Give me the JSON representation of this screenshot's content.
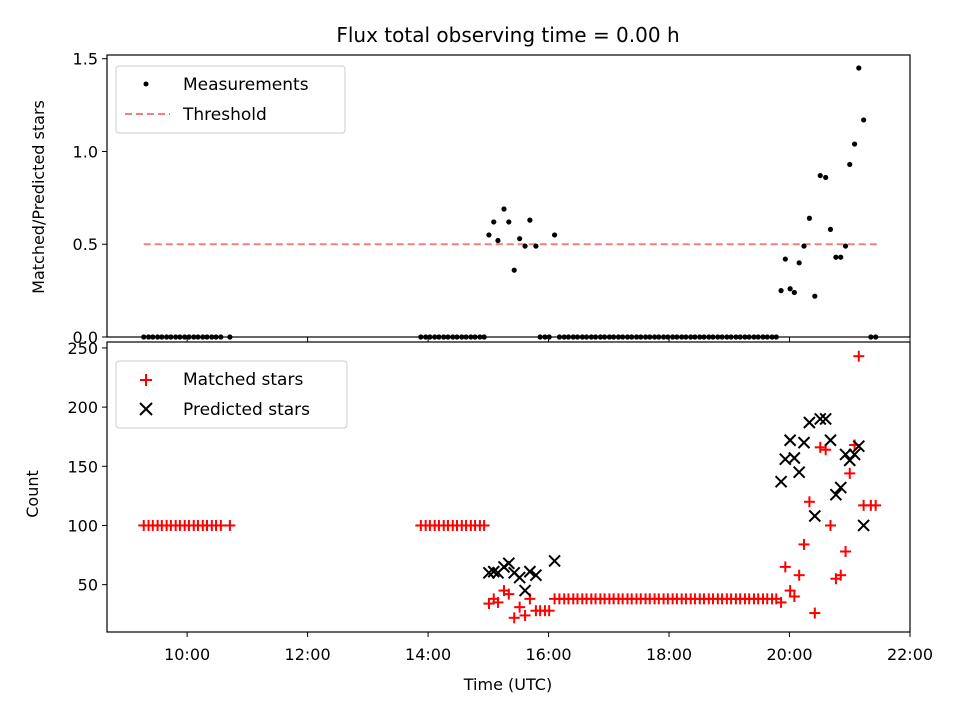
{
  "chart_data": {
    "title": "Flux total observing time = 0.00 h",
    "xlabel": "Time (UTC)",
    "x_unit": "hours UTC",
    "xlim": [
      8.67,
      22.0
    ],
    "xticks": [
      10,
      12,
      14,
      16,
      18,
      20,
      22
    ],
    "xtick_labels": [
      "10:00",
      "12:00",
      "14:00",
      "16:00",
      "18:00",
      "20:00",
      "22:00"
    ],
    "colors": {
      "measurements": "#000000",
      "threshold": "#f08080",
      "matched": "#ff0000",
      "predicted": "#000000"
    },
    "panels": [
      {
        "type": "scatter",
        "ylabel": "Matched/Predicted stars",
        "ylim": [
          0,
          1.52
        ],
        "yticks": [
          0.0,
          0.5,
          1.0,
          1.5
        ],
        "ytick_labels": [
          "0.0",
          "0.5",
          "1.0",
          "1.5"
        ],
        "legend_position": "top-left",
        "threshold": {
          "name": "Threshold",
          "value": 0.5,
          "x_range": [
            9.28,
            21.45
          ]
        },
        "series": [
          {
            "name": "Measurements",
            "marker": "dot",
            "x": [
              9.28,
              9.36,
              9.43,
              9.51,
              9.58,
              9.66,
              9.73,
              9.81,
              9.88,
              9.96,
              10.03,
              10.11,
              10.18,
              10.26,
              10.33,
              10.41,
              10.48,
              10.56,
              10.71,
              13.88,
              13.96,
              14.03,
              14.11,
              14.18,
              14.26,
              14.33,
              14.41,
              14.48,
              14.56,
              14.63,
              14.71,
              14.78,
              14.86,
              14.93,
              15.01,
              15.09,
              15.16,
              15.26,
              15.34,
              15.43,
              15.52,
              15.61,
              15.69,
              15.79,
              15.86,
              15.94,
              16.01,
              16.1,
              16.18,
              16.26,
              16.33,
              16.41,
              16.48,
              16.56,
              16.63,
              16.71,
              16.78,
              16.86,
              16.93,
              17.01,
              17.08,
              17.16,
              17.23,
              17.31,
              17.38,
              17.46,
              17.53,
              17.61,
              17.68,
              17.76,
              17.83,
              17.91,
              17.98,
              18.06,
              18.13,
              18.21,
              18.28,
              18.36,
              18.43,
              18.51,
              18.58,
              18.66,
              18.73,
              18.81,
              18.88,
              18.96,
              19.03,
              19.11,
              19.18,
              19.26,
              19.33,
              19.41,
              19.48,
              19.56,
              19.63,
              19.71,
              19.78,
              19.86,
              19.93,
              20.01,
              20.08,
              20.16,
              20.24,
              20.33,
              20.42,
              20.51,
              20.6,
              20.68,
              20.77,
              20.85,
              20.93,
              21.0,
              21.08,
              21.15,
              21.23,
              21.35,
              21.43
            ],
            "y": [
              0,
              0,
              0,
              0,
              0,
              0,
              0,
              0,
              0,
              0,
              0,
              0,
              0,
              0,
              0,
              0,
              0,
              0,
              0,
              0,
              0,
              0,
              0,
              0,
              0,
              0,
              0,
              0,
              0,
              0,
              0,
              0,
              0,
              0,
              0.55,
              0.62,
              0.52,
              0.69,
              0.62,
              0.36,
              0.53,
              0.49,
              0.63,
              0.49,
              0,
              0,
              0,
              0.55,
              0,
              0,
              0,
              0,
              0,
              0,
              0,
              0,
              0,
              0,
              0,
              0,
              0,
              0,
              0,
              0,
              0,
              0,
              0,
              0,
              0,
              0,
              0,
              0,
              0,
              0,
              0,
              0,
              0,
              0,
              0,
              0,
              0,
              0,
              0,
              0,
              0,
              0,
              0,
              0,
              0,
              0,
              0,
              0,
              0,
              0,
              0,
              0,
              0,
              0.25,
              0.42,
              0.26,
              0.24,
              0.4,
              0.49,
              0.64,
              0.22,
              0.87,
              0.86,
              0.58,
              0.43,
              0.43,
              0.49,
              0.93,
              1.04,
              1.45,
              1.17,
              0,
              0
            ]
          }
        ]
      },
      {
        "type": "scatter",
        "ylabel": "Count",
        "ylim": [
          10,
          255
        ],
        "yticks": [
          50,
          100,
          150,
          200,
          250
        ],
        "ytick_labels": [
          "50",
          "100",
          "150",
          "200",
          "250"
        ],
        "legend_position": "top-left",
        "series": [
          {
            "name": "Matched stars",
            "marker": "plus",
            "x": [
              9.28,
              9.36,
              9.43,
              9.51,
              9.58,
              9.66,
              9.73,
              9.81,
              9.88,
              9.96,
              10.03,
              10.11,
              10.18,
              10.26,
              10.33,
              10.41,
              10.48,
              10.56,
              10.71,
              13.88,
              13.96,
              14.03,
              14.11,
              14.18,
              14.26,
              14.33,
              14.41,
              14.48,
              14.56,
              14.63,
              14.71,
              14.78,
              14.86,
              14.93,
              15.01,
              15.09,
              15.16,
              15.26,
              15.34,
              15.43,
              15.52,
              15.61,
              15.69,
              15.79,
              15.86,
              15.94,
              16.01,
              16.1,
              16.18,
              16.26,
              16.33,
              16.41,
              16.48,
              16.56,
              16.63,
              16.71,
              16.78,
              16.86,
              16.93,
              17.01,
              17.08,
              17.16,
              17.23,
              17.31,
              17.38,
              17.46,
              17.53,
              17.61,
              17.68,
              17.76,
              17.83,
              17.91,
              17.98,
              18.06,
              18.13,
              18.21,
              18.28,
              18.36,
              18.43,
              18.51,
              18.58,
              18.66,
              18.73,
              18.81,
              18.88,
              18.96,
              19.03,
              19.11,
              19.18,
              19.26,
              19.33,
              19.41,
              19.48,
              19.56,
              19.63,
              19.71,
              19.78,
              19.86,
              19.93,
              20.01,
              20.08,
              20.16,
              20.24,
              20.33,
              20.42,
              20.51,
              20.6,
              20.68,
              20.77,
              20.85,
              20.93,
              21.0,
              21.08,
              21.15,
              21.23,
              21.35,
              21.43
            ],
            "y": [
              100,
              100,
              100,
              100,
              100,
              100,
              100,
              100,
              100,
              100,
              100,
              100,
              100,
              100,
              100,
              100,
              100,
              100,
              100,
              100,
              100,
              100,
              100,
              100,
              100,
              100,
              100,
              100,
              100,
              100,
              100,
              100,
              100,
              100,
              34,
              38,
              35,
              45,
              42,
              22,
              31,
              24,
              38,
              28,
              28,
              28,
              28,
              38,
              38,
              38,
              38,
              38,
              38,
              38,
              38,
              38,
              38,
              38,
              38,
              38,
              38,
              38,
              38,
              38,
              38,
              38,
              38,
              38,
              38,
              38,
              38,
              38,
              38,
              38,
              38,
              38,
              38,
              38,
              38,
              38,
              38,
              38,
              38,
              38,
              38,
              38,
              38,
              38,
              38,
              38,
              38,
              38,
              38,
              38,
              38,
              38,
              38,
              35,
              65,
              45,
              40,
              58,
              84,
              120,
              26,
              166,
              164,
              100,
              55,
              58,
              78,
              144,
              168,
              243,
              117,
              117,
              117
            ]
          },
          {
            "name": "Predicted stars",
            "marker": "x",
            "x": [
              15.01,
              15.09,
              15.16,
              15.26,
              15.34,
              15.43,
              15.52,
              15.61,
              15.69,
              15.79,
              16.1,
              19.86,
              19.93,
              20.01,
              20.08,
              20.16,
              20.24,
              20.33,
              20.42,
              20.51,
              20.6,
              20.68,
              20.77,
              20.85,
              20.93,
              21.0,
              21.08,
              21.15,
              21.23
            ],
            "y": [
              60,
              61,
              60,
              65,
              68,
              60,
              56,
              45,
              61,
              58,
              70,
              137,
              156,
              172,
              157,
              145,
              170,
              187,
              108,
              190,
              190,
              172,
              126,
              132,
              160,
              155,
              160,
              167,
              100
            ]
          }
        ]
      }
    ]
  }
}
